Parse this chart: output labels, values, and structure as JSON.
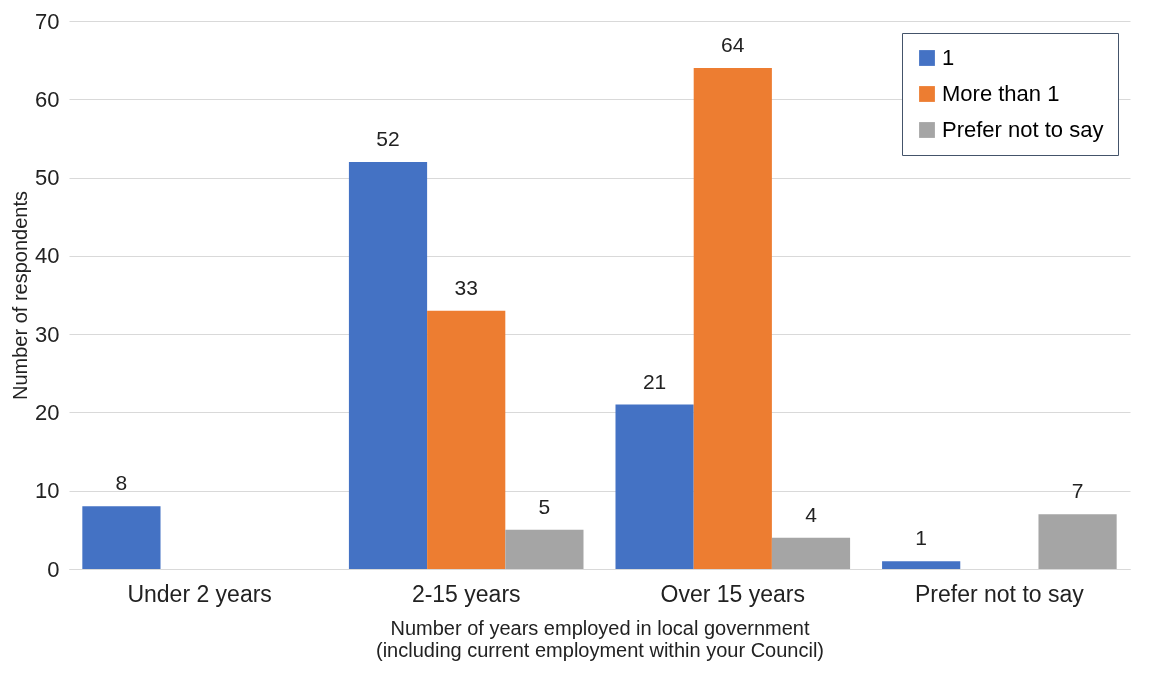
{
  "chart_data": {
    "type": "bar",
    "xlabel": "Number of years employed in local government\n(including current employment within your Council)",
    "ylabel": "Number of respondents",
    "categories": [
      "Under 2 years",
      "2-15 years",
      "Over 15 years",
      "Prefer not to say"
    ],
    "series": [
      {
        "name": "1",
        "color": "#4472c4",
        "values": [
          8,
          52,
          21,
          1
        ]
      },
      {
        "name": "More than 1",
        "color": "#ed7d31",
        "values": [
          null,
          33,
          64,
          null
        ]
      },
      {
        "name": "Prefer not to say",
        "color": "#a5a5a5",
        "values": [
          null,
          5,
          4,
          7
        ]
      }
    ],
    "ylim": [
      0,
      70
    ],
    "yticks": [
      0,
      10,
      20,
      30,
      40,
      50,
      60,
      70
    ],
    "grid": "y",
    "legend": "top right",
    "data_labels": true
  }
}
